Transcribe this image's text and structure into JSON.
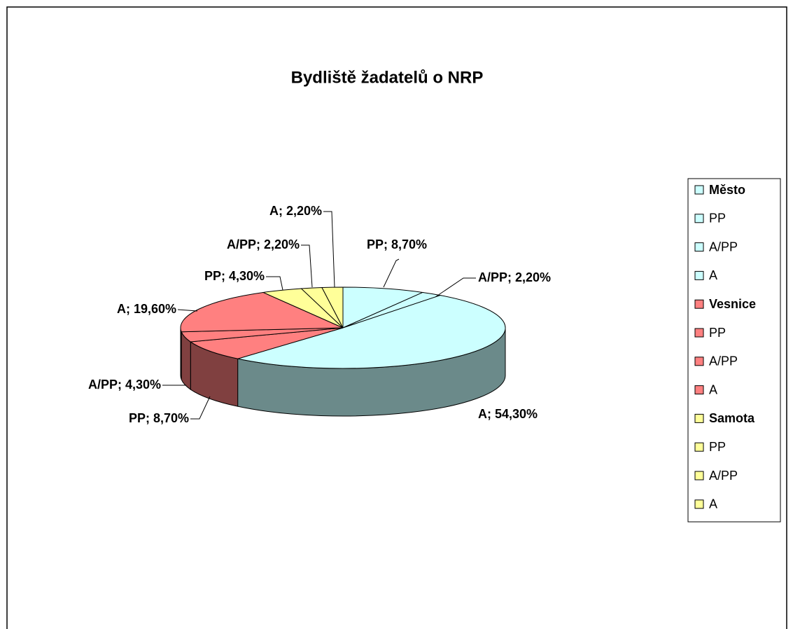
{
  "chart_data": {
    "type": "pie3d",
    "title": "Bydliště žadatelů o NRP",
    "categories": [
      "Město",
      "PP",
      "A/PP",
      "A",
      "Vesnice",
      "PP",
      "A/PP",
      "A",
      "Samota",
      "PP",
      "A/PP",
      "A"
    ],
    "values": [
      null,
      8.7,
      2.2,
      54.3,
      null,
      8.7,
      4.3,
      19.6,
      null,
      4.3,
      2.2,
      2.2
    ],
    "value_labels": [
      null,
      "PP; 8,70%",
      "A/PP; 2,20%",
      "A; 54,30%",
      null,
      "PP; 8,70%",
      "A/PP; 4,30%",
      "A; 19,60%",
      null,
      "PP; 4,30%",
      "A/PP; 2,20%",
      "A; 2,20%"
    ],
    "colors": [
      "#ccffff",
      "#ccffff",
      "#ccffff",
      "#ccffff",
      "#ff8080",
      "#ff8080",
      "#ff8080",
      "#ff8080",
      "#ffff99",
      "#ffff99",
      "#ffff99",
      "#ffff99"
    ],
    "legend": "right"
  }
}
